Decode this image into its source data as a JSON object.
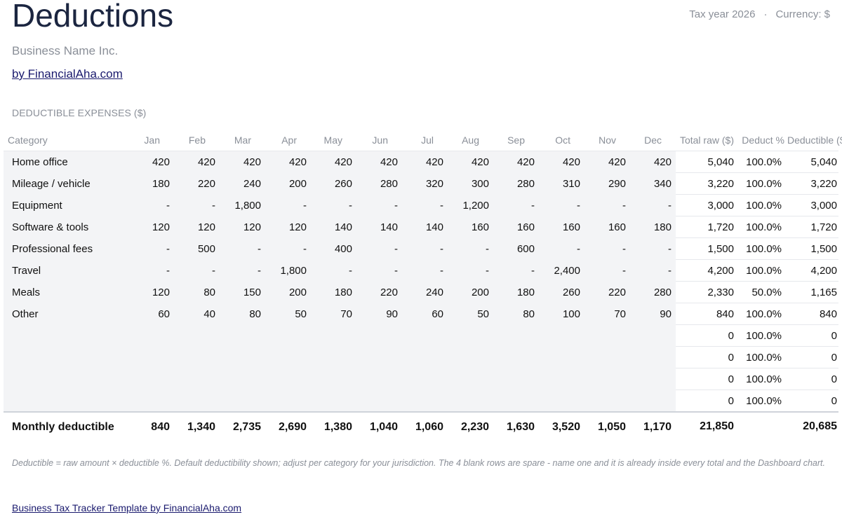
{
  "header": {
    "title": "Deductions",
    "tax_year": "Tax year 2026",
    "separator": "·",
    "currency": "Currency: $",
    "business_name": "Business Name Inc.",
    "by_link": "by FinancialAha.com"
  },
  "section_title": "DEDUCTIBLE EXPENSES ($)",
  "table": {
    "columns": [
      "Category",
      "Jan",
      "Feb",
      "Mar",
      "Apr",
      "May",
      "Jun",
      "Jul",
      "Aug",
      "Sep",
      "Oct",
      "Nov",
      "Dec",
      "Total raw ($)",
      "Deduct %",
      "Deductible ($)"
    ],
    "rows": [
      [
        "Home office",
        "420",
        "420",
        "420",
        "420",
        "420",
        "420",
        "420",
        "420",
        "420",
        "420",
        "420",
        "420",
        "5,040",
        "100.0%",
        "5,040"
      ],
      [
        "Mileage / vehicle",
        "180",
        "220",
        "240",
        "200",
        "260",
        "280",
        "320",
        "300",
        "280",
        "310",
        "290",
        "340",
        "3,220",
        "100.0%",
        "3,220"
      ],
      [
        "Equipment",
        "-",
        "-",
        "1,800",
        "-",
        "-",
        "-",
        "-",
        "1,200",
        "-",
        "-",
        "-",
        "-",
        "3,000",
        "100.0%",
        "3,000"
      ],
      [
        "Software & tools",
        "120",
        "120",
        "120",
        "120",
        "140",
        "140",
        "140",
        "160",
        "160",
        "160",
        "160",
        "180",
        "1,720",
        "100.0%",
        "1,720"
      ],
      [
        "Professional fees",
        "-",
        "500",
        "-",
        "-",
        "400",
        "-",
        "-",
        "-",
        "600",
        "-",
        "-",
        "-",
        "1,500",
        "100.0%",
        "1,500"
      ],
      [
        "Travel",
        "-",
        "-",
        "-",
        "1,800",
        "-",
        "-",
        "-",
        "-",
        "-",
        "2,400",
        "-",
        "-",
        "4,200",
        "100.0%",
        "4,200"
      ],
      [
        "Meals",
        "120",
        "80",
        "150",
        "200",
        "180",
        "220",
        "240",
        "200",
        "180",
        "260",
        "220",
        "280",
        "2,330",
        "50.0%",
        "1,165"
      ],
      [
        "Other",
        "60",
        "40",
        "80",
        "50",
        "70",
        "90",
        "60",
        "50",
        "80",
        "100",
        "70",
        "90",
        "840",
        "100.0%",
        "840"
      ],
      [
        "",
        "",
        "",
        "",
        "",
        "",
        "",
        "",
        "",
        "",
        "",
        "",
        "",
        "0",
        "100.0%",
        "0"
      ],
      [
        "",
        "",
        "",
        "",
        "",
        "",
        "",
        "",
        "",
        "",
        "",
        "",
        "",
        "0",
        "100.0%",
        "0"
      ],
      [
        "",
        "",
        "",
        "",
        "",
        "",
        "",
        "",
        "",
        "",
        "",
        "",
        "",
        "0",
        "100.0%",
        "0"
      ],
      [
        "",
        "",
        "",
        "",
        "",
        "",
        "",
        "",
        "",
        "",
        "",
        "",
        "",
        "0",
        "100.0%",
        "0"
      ]
    ],
    "footer": [
      "Monthly deductible",
      "840",
      "1,340",
      "2,735",
      "2,690",
      "1,380",
      "1,040",
      "1,060",
      "2,230",
      "1,630",
      "3,520",
      "1,050",
      "1,170",
      "21,850",
      "",
      "20,685"
    ]
  },
  "note": "Deductible = raw amount × deductible %. Default deductibility shown; adjust per category for your jurisdiction. The 4 blank rows are spare - name one and it is already inside every total and the Dashboard chart.",
  "footer_link": "Business Tax Tracker Template by FinancialAha.com"
}
